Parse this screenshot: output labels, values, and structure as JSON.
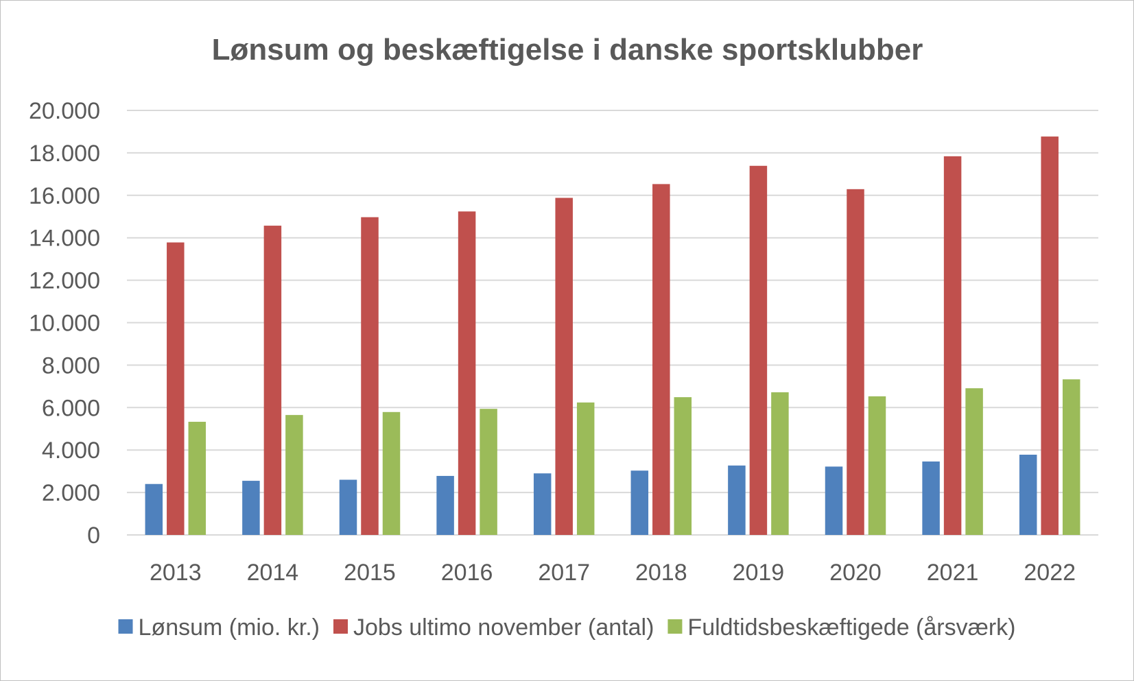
{
  "chart_data": {
    "type": "bar",
    "title": "Lønsum og beskæftigelse i danske sportsklubber",
    "xlabel": "",
    "ylabel": "",
    "categories": [
      "2013",
      "2014",
      "2015",
      "2016",
      "2017",
      "2018",
      "2019",
      "2020",
      "2021",
      "2022"
    ],
    "series": [
      {
        "name": "Lønsum (mio. kr.)",
        "color": "#4f81bd",
        "values": [
          2400,
          2550,
          2600,
          2780,
          2900,
          3030,
          3270,
          3220,
          3460,
          3780
        ]
      },
      {
        "name": "Jobs ultimo november (antal)",
        "color": "#c0504d",
        "values": [
          13780,
          14570,
          14970,
          15240,
          15880,
          16530,
          17390,
          16290,
          17840,
          18770
        ]
      },
      {
        "name": "Fuldtidsbeskæftigede (årsværk)",
        "color": "#9bbb59",
        "values": [
          5330,
          5650,
          5790,
          5940,
          6240,
          6490,
          6720,
          6530,
          6910,
          7330
        ]
      }
    ],
    "ylim": [
      0,
      20000
    ],
    "yticks": [
      0,
      2000,
      4000,
      6000,
      8000,
      10000,
      12000,
      14000,
      16000,
      18000,
      20000
    ],
    "ytick_labels": [
      "0",
      "2.000",
      "4.000",
      "6.000",
      "8.000",
      "10.000",
      "12.000",
      "14.000",
      "16.000",
      "18.000",
      "20.000"
    ],
    "grid": true,
    "legend_position": "bottom",
    "gridline_color": "#d9d9d9"
  }
}
